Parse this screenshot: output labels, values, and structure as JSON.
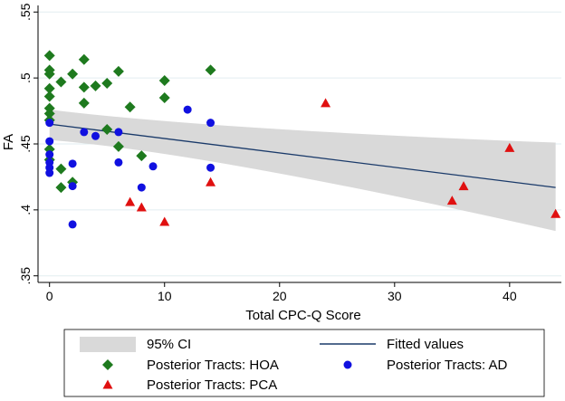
{
  "chart_data": {
    "type": "scatter",
    "title": "",
    "xlabel": "Total CPC-Q Score",
    "ylabel": "FA",
    "xlim": [
      -1,
      44.5
    ],
    "ylim": [
      0.345,
      0.555
    ],
    "x_ticks": [
      0,
      10,
      20,
      30,
      40
    ],
    "x_tick_labels": [
      "0",
      "10",
      "20",
      "30",
      "40"
    ],
    "y_ticks": [
      0.35,
      0.4,
      0.45,
      0.5,
      0.55
    ],
    "y_tick_labels": [
      ".35",
      ".4",
      ".45",
      ".5",
      ".55"
    ],
    "grid": true,
    "ci_band": {
      "name": "95% CI",
      "color": "#d9d9d9",
      "x": [
        0,
        44
      ],
      "upper": [
        0.476,
        0.451
      ],
      "lower": [
        0.453,
        0.384
      ]
    },
    "fitted_line": {
      "name": "Fitted values",
      "color": "#1a3a6a",
      "x": [
        0,
        44
      ],
      "y": [
        0.465,
        0.417
      ]
    },
    "series": [
      {
        "name": "Posterior Tracts: HOA",
        "marker": "diamond",
        "color": "#1e7a1e",
        "points": [
          [
            0,
            0.517
          ],
          [
            0,
            0.506
          ],
          [
            0,
            0.503
          ],
          [
            0,
            0.492
          ],
          [
            0,
            0.486
          ],
          [
            0,
            0.477
          ],
          [
            0,
            0.473
          ],
          [
            0,
            0.468
          ],
          [
            0,
            0.446
          ],
          [
            0,
            0.438
          ],
          [
            1,
            0.497
          ],
          [
            1,
            0.431
          ],
          [
            1,
            0.417
          ],
          [
            2,
            0.503
          ],
          [
            2,
            0.421
          ],
          [
            3,
            0.514
          ],
          [
            3,
            0.493
          ],
          [
            3,
            0.481
          ],
          [
            4,
            0.494
          ],
          [
            5,
            0.496
          ],
          [
            5,
            0.461
          ],
          [
            6,
            0.505
          ],
          [
            6,
            0.448
          ],
          [
            7,
            0.478
          ],
          [
            8,
            0.441
          ],
          [
            10,
            0.498
          ],
          [
            10,
            0.485
          ],
          [
            14,
            0.506
          ]
        ]
      },
      {
        "name": "Posterior Tracts: AD",
        "marker": "circle",
        "color": "#1010e0",
        "points": [
          [
            0,
            0.466
          ],
          [
            0,
            0.452
          ],
          [
            0,
            0.442
          ],
          [
            0,
            0.436
          ],
          [
            0,
            0.432
          ],
          [
            0,
            0.428
          ],
          [
            2,
            0.435
          ],
          [
            2,
            0.418
          ],
          [
            2,
            0.389
          ],
          [
            3,
            0.459
          ],
          [
            4,
            0.456
          ],
          [
            6,
            0.459
          ],
          [
            6,
            0.436
          ],
          [
            8,
            0.417
          ],
          [
            9,
            0.433
          ],
          [
            12,
            0.476
          ],
          [
            14,
            0.466
          ],
          [
            14,
            0.432
          ]
        ]
      },
      {
        "name": "Posterior Tracts: PCA",
        "marker": "triangle",
        "color": "#e01010",
        "points": [
          [
            7,
            0.406
          ],
          [
            8,
            0.402
          ],
          [
            10,
            0.391
          ],
          [
            14,
            0.421
          ],
          [
            24,
            0.481
          ],
          [
            35,
            0.407
          ],
          [
            36,
            0.418
          ],
          [
            40,
            0.447
          ],
          [
            44,
            0.397
          ]
        ]
      }
    ],
    "legend": {
      "placement": "bottom",
      "entries": [
        {
          "key": "ci",
          "label": "95% CI"
        },
        {
          "key": "fit",
          "label": "Fitted values"
        },
        {
          "key": "hoa",
          "label": "Posterior Tracts: HOA"
        },
        {
          "key": "ad",
          "label": "Posterior Tracts: AD"
        },
        {
          "key": "pca",
          "label": "Posterior Tracts: PCA"
        }
      ]
    }
  }
}
